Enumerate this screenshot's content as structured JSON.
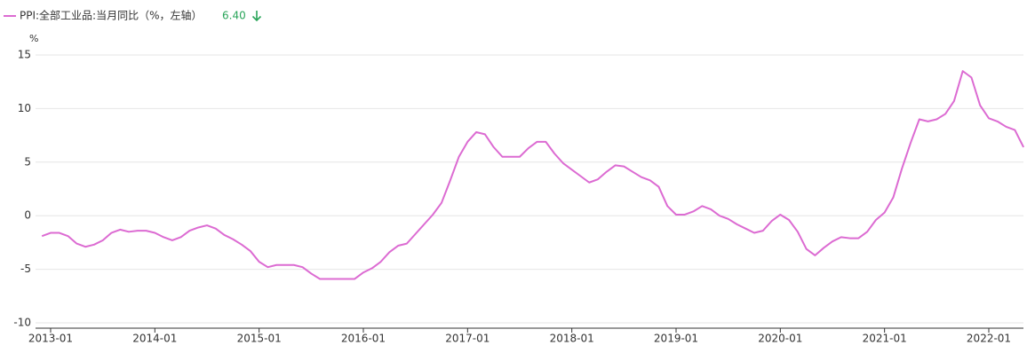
{
  "chart_data": {
    "type": "line",
    "series": [
      {
        "name": "PPI:全部工业品:当月同比（%，左轴）",
        "color": "#dc6bd2",
        "values": [
          -1.9,
          -1.6,
          -1.6,
          -1.9,
          -2.6,
          -2.9,
          -2.7,
          -2.3,
          -1.6,
          -1.3,
          -1.5,
          -1.4,
          -1.4,
          -1.6,
          -2.0,
          -2.3,
          -2.0,
          -1.4,
          -1.1,
          -0.9,
          -1.2,
          -1.8,
          -2.2,
          -2.7,
          -3.3,
          -4.3,
          -4.8,
          -4.6,
          -4.6,
          -4.6,
          -4.8,
          -5.4,
          -5.9,
          -5.9,
          -5.9,
          -5.9,
          -5.9,
          -5.3,
          -4.9,
          -4.3,
          -3.4,
          -2.8,
          -2.6,
          -1.7,
          -0.8,
          0.1,
          1.2,
          3.3,
          5.5,
          6.9,
          7.8,
          7.6,
          6.4,
          5.5,
          5.5,
          5.5,
          6.3,
          6.9,
          6.9,
          5.8,
          4.9,
          4.3,
          3.7,
          3.1,
          3.4,
          4.1,
          4.7,
          4.6,
          4.1,
          3.6,
          3.3,
          2.7,
          0.9,
          0.1,
          0.1,
          0.4,
          0.9,
          0.6,
          0.0,
          -0.3,
          -0.8,
          -1.2,
          -1.6,
          -1.4,
          -0.5,
          0.1,
          -0.4,
          -1.5,
          -3.1,
          -3.7,
          -3.0,
          -2.4,
          -2.0,
          -2.1,
          -2.1,
          -1.5,
          -0.4,
          0.3,
          1.7,
          4.4,
          6.8,
          9.0,
          8.8,
          9.0,
          9.5,
          10.7,
          13.5,
          12.9,
          10.3,
          9.1,
          8.8,
          8.3,
          8.0,
          6.4
        ]
      }
    ],
    "categories": [
      null,
      "2013-01",
      null,
      null,
      null,
      null,
      null,
      null,
      null,
      null,
      null,
      null,
      null,
      "2014-01",
      null,
      null,
      null,
      null,
      null,
      null,
      null,
      null,
      null,
      null,
      null,
      "2015-01",
      null,
      null,
      null,
      null,
      null,
      null,
      null,
      null,
      null,
      null,
      null,
      "2016-01",
      null,
      null,
      null,
      null,
      null,
      null,
      null,
      null,
      null,
      null,
      null,
      "2017-01",
      null,
      null,
      null,
      null,
      null,
      null,
      null,
      null,
      null,
      null,
      null,
      "2018-01",
      null,
      null,
      null,
      null,
      null,
      null,
      null,
      null,
      null,
      null,
      null,
      "2019-01",
      null,
      null,
      null,
      null,
      null,
      null,
      null,
      null,
      null,
      null,
      null,
      "2020-01",
      null,
      null,
      null,
      null,
      null,
      null,
      null,
      null,
      null,
      null,
      null,
      "2021-01",
      null,
      null,
      null,
      null,
      null,
      null,
      null,
      null,
      null,
      null,
      null,
      "2022-01",
      null,
      null,
      null,
      null
    ],
    "legend_value": {
      "value": 6.4,
      "label": "6.40"
    },
    "y_unit": "%",
    "ylim": [
      -10,
      15
    ],
    "yticks": [
      -10,
      -5,
      0,
      5,
      10,
      15
    ],
    "grid": true
  }
}
